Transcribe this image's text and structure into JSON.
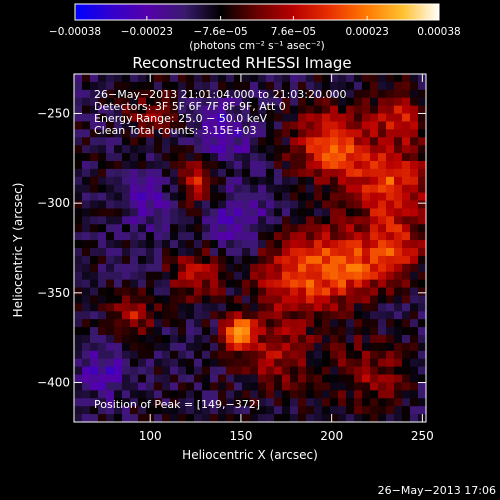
{
  "chart_data": {
    "type": "heatmap",
    "title": "Reconstructed RHESSI Image",
    "xlabel": "Heliocentric X (arcsec)",
    "ylabel": "Heliocentric Y (arcsec)",
    "xlim": [
      58,
      252
    ],
    "ylim": [
      -422,
      -228
    ],
    "x_ticks": [
      100,
      150,
      200,
      250
    ],
    "x_tick_labels": [
      "100",
      "150",
      "200",
      "250"
    ],
    "y_ticks": [
      -250,
      -300,
      -350,
      -400
    ],
    "y_tick_labels": [
      "−250",
      "−300",
      "−350",
      "−400"
    ],
    "colorbar": {
      "range": [
        -0.00038,
        0.00038
      ],
      "tick_values": [
        -0.00038,
        -0.00023,
        -7.6e-05,
        7.6e-05,
        0.00023,
        0.00038
      ],
      "tick_labels": [
        "−0.00038",
        "−0.00023",
        "−7.6e−05",
        "7.6e−05",
        "0.00023",
        "0.00038"
      ],
      "units": "(photons cm⁻² s⁻¹ asec⁻²)",
      "colormap": [
        "#0000ff",
        "#3300cc",
        "#5500aa",
        "#3a1a6e",
        "#000000",
        "#6a0000",
        "#b80000",
        "#e83000",
        "#ff7a00",
        "#ffc030",
        "#ffffff"
      ]
    },
    "info_lines": [
      "26−May−2013 21:01:04.000 to 21:03:20.000",
      "Detectors: 3F 5F 6F 7F 8F 9F, Att 0",
      "Energy Range: 25.0 − 50.0 keV",
      "Clean    Total counts: 3.15E+03"
    ],
    "peak_label": "Position of Peak = [149,−372]",
    "peak_position": [
      149,
      -372
    ],
    "sources": [
      {
        "x": 149,
        "y": -372,
        "amp": 1.0,
        "sigma": 6
      },
      {
        "x": 200,
        "y": -268,
        "amp": 0.75,
        "sigma": 14
      },
      {
        "x": 232,
        "y": -290,
        "amp": 0.7,
        "sigma": 14
      },
      {
        "x": 238,
        "y": -252,
        "amp": 0.55,
        "sigma": 10
      },
      {
        "x": 180,
        "y": -340,
        "amp": 0.6,
        "sigma": 16
      },
      {
        "x": 208,
        "y": -335,
        "amp": 0.65,
        "sigma": 14
      },
      {
        "x": 235,
        "y": -325,
        "amp": 0.55,
        "sigma": 12
      },
      {
        "x": 125,
        "y": -288,
        "amp": 0.55,
        "sigma": 8
      },
      {
        "x": 90,
        "y": -362,
        "amp": 0.5,
        "sigma": 8
      },
      {
        "x": 125,
        "y": -340,
        "amp": 0.45,
        "sigma": 10
      },
      {
        "x": 170,
        "y": -385,
        "amp": 0.4,
        "sigma": 14
      },
      {
        "x": 220,
        "y": -395,
        "amp": 0.35,
        "sigma": 14
      },
      {
        "x": 100,
        "y": -250,
        "amp": 0.3,
        "sigma": 10
      },
      {
        "x": 140,
        "y": -260,
        "amp": -0.45,
        "sigma": 10
      },
      {
        "x": 75,
        "y": -395,
        "amp": -0.35,
        "sigma": 10
      },
      {
        "x": 150,
        "y": -310,
        "amp": -0.35,
        "sigma": 12
      },
      {
        "x": 100,
        "y": -300,
        "amp": -0.3,
        "sigma": 10
      }
    ]
  },
  "footer": {
    "timestamp": "26−May−2013 17:06"
  }
}
